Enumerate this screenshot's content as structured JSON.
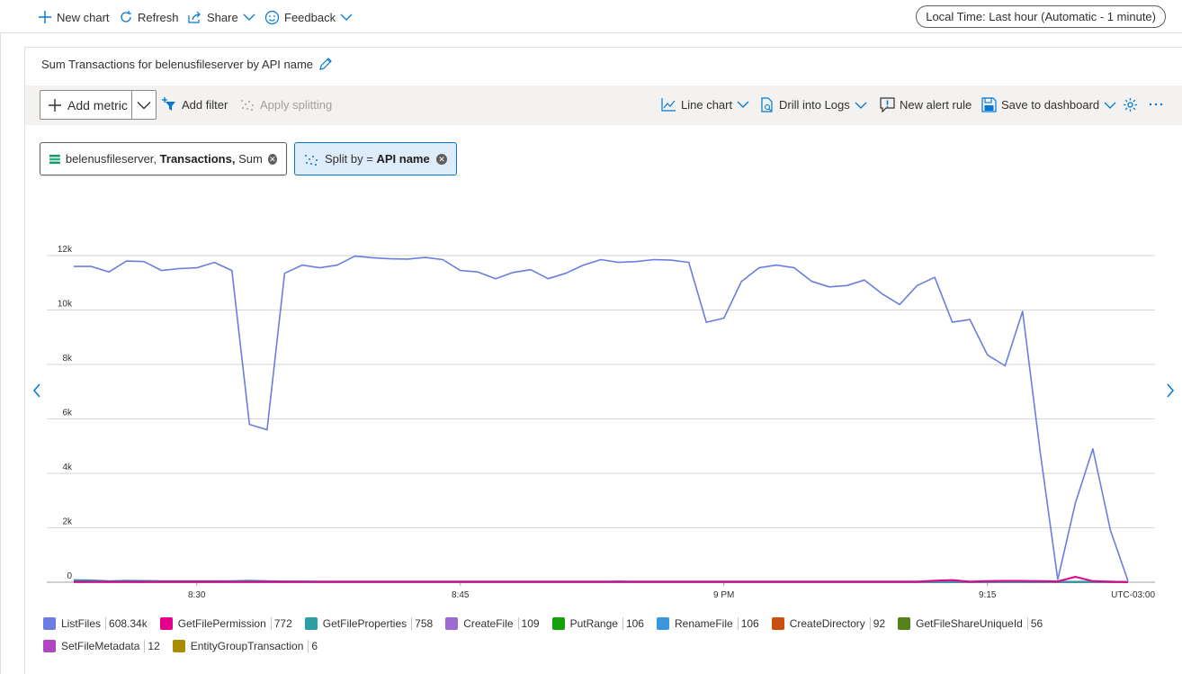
{
  "topbar": {
    "new_chart": "New chart",
    "refresh": "Refresh",
    "share": "Share",
    "feedback": "Feedback",
    "time_range": "Local Time: Last hour (Automatic - 1 minute)"
  },
  "card": {
    "title": "Sum Transactions for belenusfileserver by API name"
  },
  "toolbar": {
    "add_metric": "Add metric",
    "add_filter": "Add filter",
    "apply_splitting": "Apply splitting",
    "line_chart": "Line chart",
    "drill_logs": "Drill into Logs",
    "new_alert": "New alert rule",
    "save_dashboard": "Save to dashboard"
  },
  "metric_pill": {
    "resource": "belenusfileserver,",
    "metric": "Transactions,",
    "aggregation": "Sum"
  },
  "split_pill": {
    "prefix": "Split by =",
    "value": "API name"
  },
  "colors": {
    "accent": "#0078d4",
    "ListFiles": "#6b7de0",
    "GetFilePermission": "#e3008c",
    "GetFileProperties": "#2aa0a4",
    "CreateFile": "#9c6ad1",
    "PutRange": "#13a10e",
    "RenameFile": "#3a96dd",
    "CreateDirectory": "#ca5010",
    "GetFileShareUniqueId": "#57811b",
    "SetFileMetadata": "#b146c2",
    "EntityGroupTransaction": "#a88b00"
  },
  "chart_data": {
    "type": "line",
    "y_ticks": [
      "12k",
      "10k",
      "8k",
      "6k",
      "4k",
      "2k",
      "0"
    ],
    "ylim": [
      0,
      12000
    ],
    "x_ticks": [
      {
        "label": "8:30",
        "minute": 7
      },
      {
        "label": "8:45",
        "minute": 22
      },
      {
        "label": "9 PM",
        "minute": 37
      },
      {
        "label": "9:15",
        "minute": 52
      }
    ],
    "x_range": [
      0,
      60
    ],
    "timezone": "UTC-03:00",
    "series": [
      {
        "name": "ListFiles",
        "total": "608.34k",
        "values": [
          11600,
          11600,
          11400,
          11800,
          11780,
          11450,
          11520,
          11550,
          11750,
          11450,
          5800,
          5600,
          11350,
          11650,
          11550,
          11650,
          11980,
          11920,
          11880,
          11870,
          11930,
          11850,
          11450,
          11400,
          11150,
          11380,
          11480,
          11150,
          11350,
          11650,
          11850,
          11750,
          11780,
          11850,
          11830,
          11750,
          9550,
          9700,
          11050,
          11550,
          11650,
          11550,
          11050,
          10850,
          10900,
          11100,
          10600,
          10200,
          10900,
          11200,
          9550,
          9650,
          8350,
          7950,
          9950,
          4800,
          100,
          2900,
          4900,
          1900,
          50
        ]
      },
      {
        "name": "GetFilePermission",
        "total": "772",
        "values": [
          20,
          20,
          20,
          20,
          20,
          20,
          20,
          20,
          20,
          20,
          20,
          20,
          20,
          20,
          20,
          20,
          20,
          20,
          20,
          20,
          20,
          20,
          20,
          20,
          20,
          20,
          20,
          20,
          20,
          20,
          20,
          20,
          20,
          20,
          20,
          20,
          20,
          20,
          20,
          20,
          20,
          20,
          20,
          20,
          20,
          20,
          20,
          20,
          20,
          60,
          80,
          20,
          40,
          50,
          50,
          40,
          30,
          200,
          40,
          20,
          10
        ]
      },
      {
        "name": "GetFileProperties",
        "total": "758",
        "values": [
          80,
          70,
          40,
          60,
          50,
          40,
          40,
          40,
          40,
          40,
          60,
          40,
          30,
          30,
          20,
          20,
          20,
          20,
          20,
          20,
          20,
          20,
          20,
          20,
          20,
          20,
          20,
          20,
          20,
          20,
          20,
          20,
          20,
          20,
          20,
          20,
          20,
          20,
          20,
          20,
          20,
          20,
          20,
          20,
          20,
          20,
          20,
          20,
          20,
          20,
          20,
          20,
          20,
          20,
          20,
          20,
          20,
          20,
          20,
          20,
          10
        ]
      },
      {
        "name": "CreateFile",
        "total": "109",
        "values": [
          5,
          5,
          5,
          5,
          5,
          5,
          5,
          5,
          5,
          5,
          5,
          5,
          5,
          5,
          5,
          5,
          5,
          5,
          5,
          5,
          5,
          5,
          5,
          5,
          5,
          5,
          5,
          5,
          5,
          5,
          5,
          5,
          5,
          5,
          5,
          5,
          5,
          5,
          5,
          5,
          5,
          5,
          5,
          5,
          5,
          5,
          5,
          5,
          5,
          5,
          5,
          5,
          5,
          5,
          5,
          5,
          5,
          5,
          5,
          5,
          5
        ]
      },
      {
        "name": "PutRange",
        "total": "106",
        "values": [
          30,
          40,
          20,
          20,
          10,
          10,
          10,
          10,
          10,
          20,
          30,
          20,
          10,
          10,
          10,
          10,
          10,
          10,
          10,
          10,
          10,
          10,
          10,
          10,
          10,
          10,
          10,
          10,
          10,
          10,
          10,
          30,
          10,
          10,
          10,
          10,
          10,
          10,
          10,
          10,
          10,
          10,
          10,
          10,
          10,
          10,
          10,
          10,
          10,
          10,
          10,
          10,
          10,
          10,
          10,
          10,
          10,
          10,
          10,
          10,
          5
        ]
      },
      {
        "name": "RenameFile",
        "total": "106",
        "values": [
          5,
          5,
          5,
          5,
          5,
          5,
          5,
          5,
          5,
          5,
          5,
          5,
          5,
          5,
          5,
          5,
          5,
          5,
          5,
          5,
          5,
          5,
          5,
          5,
          5,
          5,
          5,
          5,
          5,
          5,
          5,
          5,
          5,
          5,
          5,
          5,
          5,
          5,
          5,
          5,
          5,
          5,
          5,
          5,
          5,
          5,
          5,
          5,
          5,
          5,
          5,
          5,
          5,
          5,
          5,
          5,
          5,
          5,
          5,
          5,
          5
        ]
      },
      {
        "name": "CreateDirectory",
        "total": "92",
        "values": [
          5,
          5,
          5,
          5,
          5,
          5,
          5,
          5,
          5,
          5,
          5,
          5,
          5,
          5,
          5,
          5,
          5,
          5,
          5,
          5,
          5,
          5,
          5,
          5,
          5,
          5,
          5,
          5,
          5,
          5,
          5,
          5,
          5,
          5,
          5,
          5,
          5,
          5,
          5,
          5,
          5,
          5,
          5,
          5,
          5,
          5,
          5,
          5,
          5,
          5,
          5,
          5,
          5,
          5,
          5,
          5,
          5,
          5,
          5,
          5,
          5
        ]
      },
      {
        "name": "GetFileShareUniqueId",
        "total": "56",
        "values": [
          3,
          3,
          3,
          3,
          3,
          3,
          3,
          3,
          3,
          3,
          3,
          3,
          3,
          3,
          3,
          3,
          3,
          3,
          3,
          3,
          3,
          3,
          3,
          3,
          3,
          3,
          3,
          3,
          3,
          3,
          3,
          3,
          3,
          3,
          3,
          3,
          3,
          3,
          3,
          3,
          3,
          3,
          3,
          3,
          3,
          3,
          3,
          3,
          3,
          3,
          3,
          3,
          3,
          3,
          3,
          3,
          3,
          3,
          3,
          3,
          3
        ]
      },
      {
        "name": "SetFileMetadata",
        "total": "12",
        "values": [
          1,
          1,
          1,
          1,
          1,
          1,
          1,
          1,
          1,
          1,
          1,
          1,
          1,
          1,
          1,
          1,
          1,
          1,
          1,
          1,
          1,
          1,
          1,
          1,
          1,
          1,
          1,
          1,
          1,
          1,
          1,
          1,
          1,
          1,
          1,
          1,
          1,
          1,
          1,
          1,
          1,
          1,
          1,
          1,
          1,
          1,
          1,
          1,
          1,
          1,
          1,
          1,
          1,
          1,
          1,
          1,
          1,
          1,
          1,
          1,
          1
        ]
      },
      {
        "name": "EntityGroupTransaction",
        "total": "6",
        "values": [
          0,
          0,
          0,
          0,
          0,
          0,
          0,
          0,
          0,
          0,
          0,
          0,
          0,
          0,
          0,
          0,
          0,
          0,
          0,
          0,
          0,
          0,
          0,
          0,
          0,
          0,
          0,
          0,
          0,
          0,
          0,
          0,
          0,
          0,
          0,
          0,
          0,
          0,
          0,
          0,
          0,
          0,
          0,
          0,
          0,
          0,
          0,
          0,
          0,
          0,
          0,
          0,
          0,
          0,
          0,
          0,
          0,
          0,
          0,
          0,
          0
        ]
      }
    ]
  }
}
